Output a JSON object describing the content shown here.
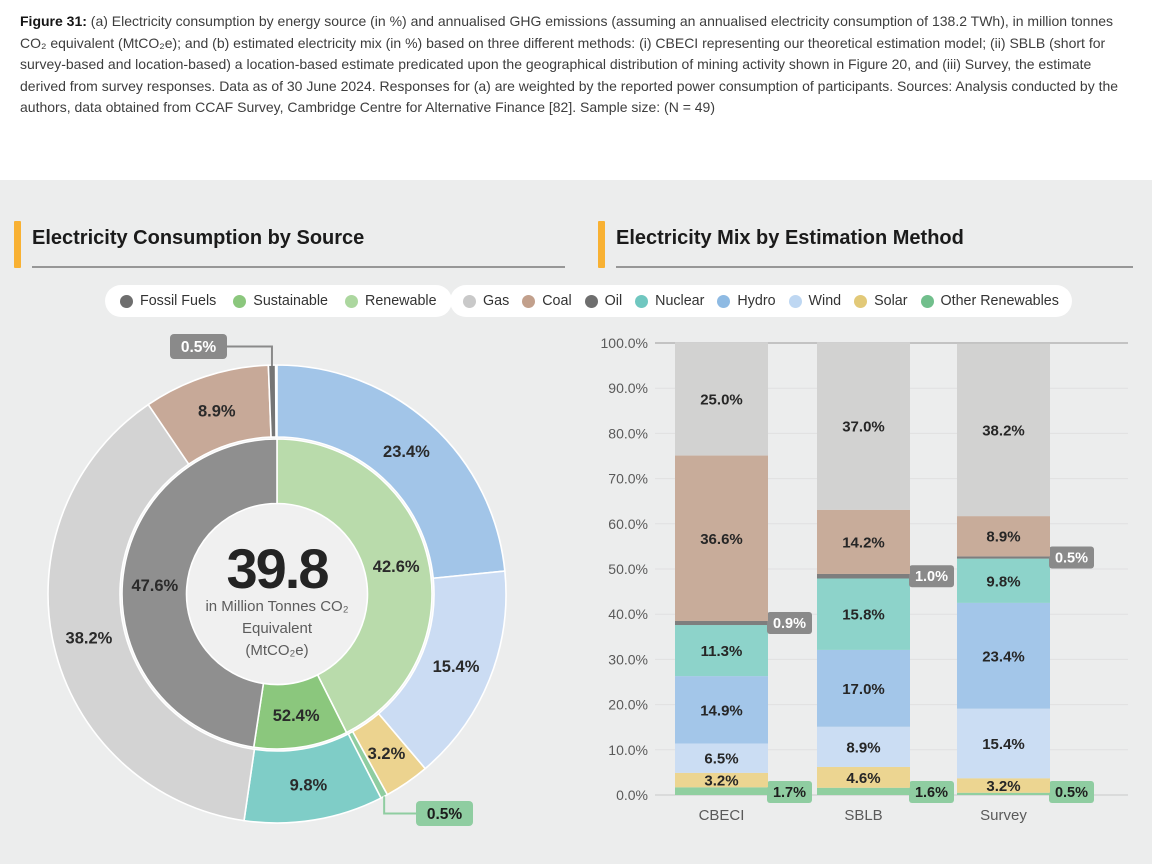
{
  "caption": {
    "figure_label": "Figure 31:",
    "text": " (a) Electricity consumption by energy source (in %) and annualised GHG emissions (assuming an annualised electricity consumption of 138.2 TWh), in million tonnes CO₂ equivalent (MtCO₂e); and (b) estimated electricity mix (in %) based on three different methods: (i) CBECI representing our theoretical estimation model; (ii) SBLB (short for survey-based and location-based) a location-based estimate predicated upon the geographical distribution of mining activity shown in Figure 20, and (iii) Survey, the estimate derived from survey responses. Data as of 30 June 2024. Responses for (a) are weighted by the reported power consumption of participants. Sources: Analysis conducted by the authors, data obtained from CCAF Survey, Cambridge Centre for Alternative Finance [82]. Sample size: (N = 49)"
  },
  "panels": {
    "left": {
      "title": "Electricity Consumption by Source",
      "accent_color": "#F8B133",
      "legend": [
        {
          "label": "Fossil Fuels",
          "color": "#6E6E6E"
        },
        {
          "label": "Sustainable",
          "color": "#8BC77D"
        },
        {
          "label": "Renewable",
          "color": "#ACD79F"
        }
      ]
    },
    "right": {
      "title": "Electricity Mix by Estimation Method",
      "accent_color": "#F8B133",
      "legend": [
        {
          "label": "Gas",
          "color": "#C9C9C9"
        },
        {
          "label": "Coal",
          "color": "#C2A08C"
        },
        {
          "label": "Oil",
          "color": "#6E6E6E"
        },
        {
          "label": "Nuclear",
          "color": "#70C7C0"
        },
        {
          "label": "Hydro",
          "color": "#8EBAE3"
        },
        {
          "label": "Wind",
          "color": "#BED7F2"
        },
        {
          "label": "Solar",
          "color": "#E2C978"
        },
        {
          "label": "Other Renewables",
          "color": "#71BF8C"
        }
      ]
    }
  },
  "chart_data": [
    {
      "type": "donut",
      "title": "Electricity Consumption by Source",
      "center": {
        "value": "39.8",
        "unit_lines": [
          "in Million Tonnes CO₂",
          "Equivalent",
          "(MtCO₂e)"
        ]
      },
      "inner_ring": [
        {
          "name": "Renewable",
          "sweep_pct": 42.6,
          "label": "42.6%",
          "color": "#B9DBAB",
          "label_color": "dark"
        },
        {
          "name": "Sustainable",
          "sweep_pct": 9.8,
          "label": "52.4%",
          "color": "#8BC77D",
          "label_color": "dark"
        },
        {
          "name": "Fossil Fuels",
          "sweep_pct": 47.6,
          "label": "47.6%",
          "color": "#8F8F8F",
          "label_color": "light"
        }
      ],
      "outer_ring": [
        {
          "name": "Hydro",
          "value": 23.4,
          "label": "23.4%",
          "color": "#A2C5E8"
        },
        {
          "name": "Wind",
          "value": 15.4,
          "label": "15.4%",
          "color": "#CBDCF3"
        },
        {
          "name": "Solar",
          "value": 3.2,
          "label": "3.2%",
          "color": "#ECD38F"
        },
        {
          "name": "Other Renewables",
          "value": 0.5,
          "label": "0.5%",
          "color": "#8FCDA1",
          "callout": "bottom"
        },
        {
          "name": "Nuclear",
          "value": 9.8,
          "label": "9.8%",
          "color": "#7FCDC7"
        },
        {
          "name": "Gas",
          "value": 38.2,
          "label": "38.2%",
          "color": "#D3D3D3"
        },
        {
          "name": "Coal",
          "value": 8.9,
          "label": "8.9%",
          "color": "#C7A998"
        },
        {
          "name": "Oil",
          "value": 0.5,
          "label": "0.5%",
          "color": "#757575",
          "callout": "top"
        }
      ],
      "callout_colors": {
        "top_box": "#8A8A8A",
        "bottom_box": "#8FCDA1"
      }
    },
    {
      "type": "stacked-bar",
      "title": "Electricity Mix by Estimation Method",
      "categories": [
        "CBECI",
        "SBLB",
        "Survey"
      ],
      "series": [
        {
          "name": "Other Renewables",
          "color": "#90CFA0",
          "values": [
            1.7,
            1.6,
            0.5
          ],
          "label_style": "callout-green"
        },
        {
          "name": "Solar",
          "color": "#ECD591",
          "values": [
            3.2,
            4.6,
            3.2
          ]
        },
        {
          "name": "Wind",
          "color": "#CBDDF3",
          "values": [
            6.5,
            8.9,
            15.4
          ]
        },
        {
          "name": "Hydro",
          "color": "#A3C6E9",
          "values": [
            14.9,
            17.0,
            23.4
          ]
        },
        {
          "name": "Nuclear",
          "color": "#8DD3CA",
          "values": [
            11.3,
            15.8,
            9.8
          ]
        },
        {
          "name": "Oil",
          "color": "#7E7E7E",
          "values": [
            0.9,
            1.0,
            0.5
          ],
          "label_style": "callout-gray"
        },
        {
          "name": "Coal",
          "color": "#C8AC9A",
          "values": [
            36.6,
            14.2,
            8.9
          ]
        },
        {
          "name": "Gas",
          "color": "#D2D2D1",
          "values": [
            25.0,
            37.0,
            38.2
          ]
        }
      ],
      "y_axis": {
        "min": 0,
        "max": 100,
        "step": 10,
        "tick_labels": [
          "0.0%",
          "10.0%",
          "20.0%",
          "30.0%",
          "40.0%",
          "50.0%",
          "60.0%",
          "70.0%",
          "80.0%",
          "90.0%",
          "100.0%"
        ]
      },
      "grid": true,
      "min_inline_label": 3.0,
      "callout_colors": {
        "gray_box": "#8A8A8A",
        "green_box": "#8FCDA1"
      }
    }
  ]
}
